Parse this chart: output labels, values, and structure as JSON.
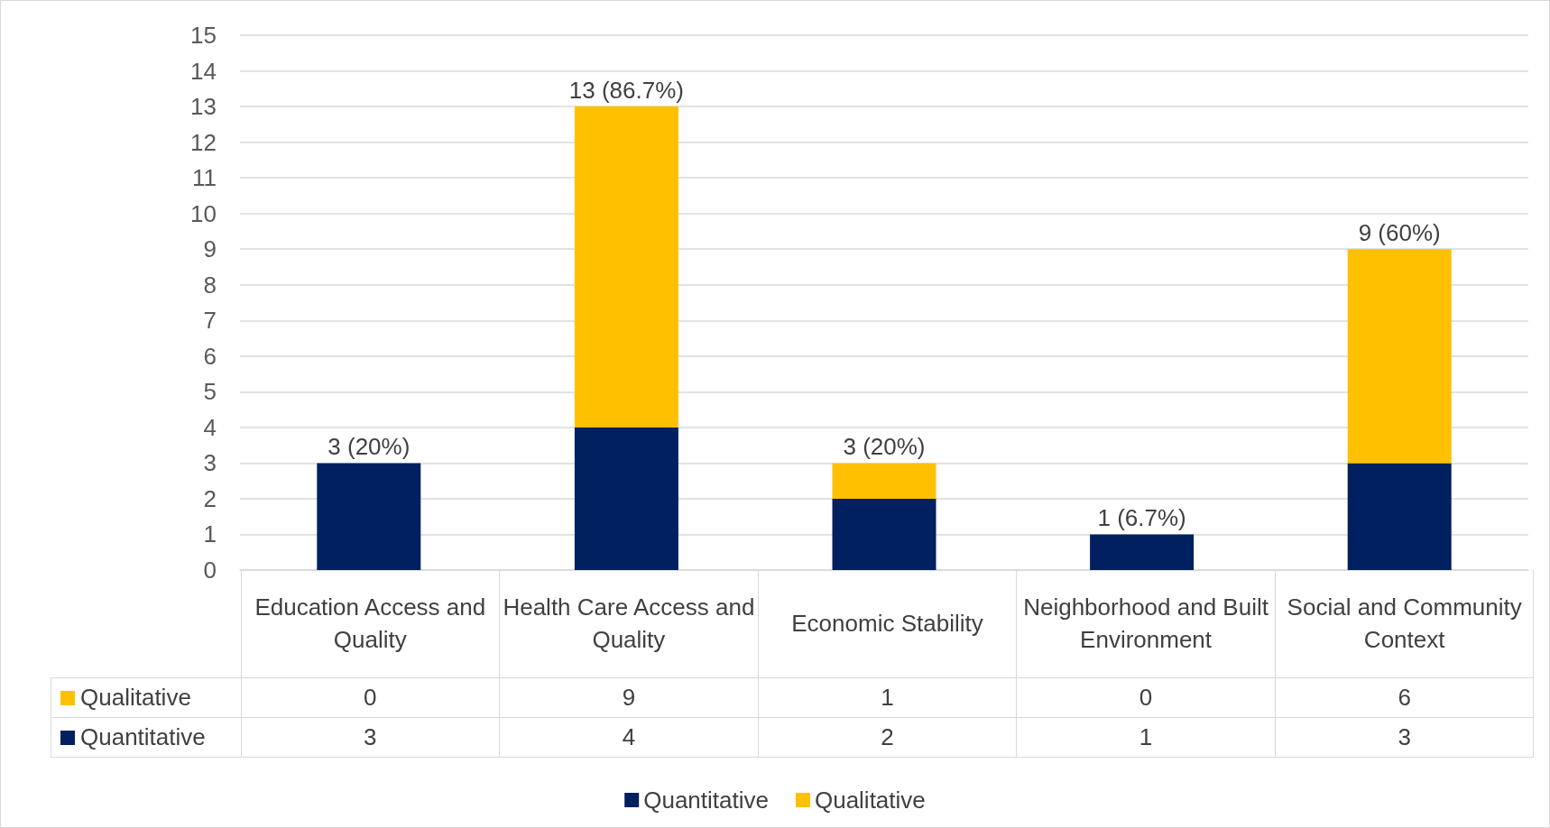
{
  "chart_data": {
    "type": "bar",
    "stacked": true,
    "categories": [
      "Education Access and Quality",
      "Health Care Access and Quality",
      "Economic Stability",
      "Neighborhood and Built Environment",
      "Social and Community Context"
    ],
    "series": [
      {
        "name": "Quantitative",
        "color": "#002060",
        "values": [
          3,
          4,
          2,
          1,
          3
        ]
      },
      {
        "name": "Qualitative",
        "color": "#ffc000",
        "values": [
          0,
          9,
          1,
          0,
          6
        ]
      }
    ],
    "totals": [
      "3 (20%)",
      "13 (86.7%)",
      "3 (20%)",
      "1 (6.7%)",
      "9 (60%)"
    ],
    "data_labels": true,
    "ylim": [
      0,
      15
    ],
    "yticks": [
      0,
      1,
      2,
      3,
      4,
      5,
      6,
      7,
      8,
      9,
      10,
      11,
      12,
      13,
      14,
      15
    ],
    "grid": "y",
    "legend": "bottom"
  }
}
